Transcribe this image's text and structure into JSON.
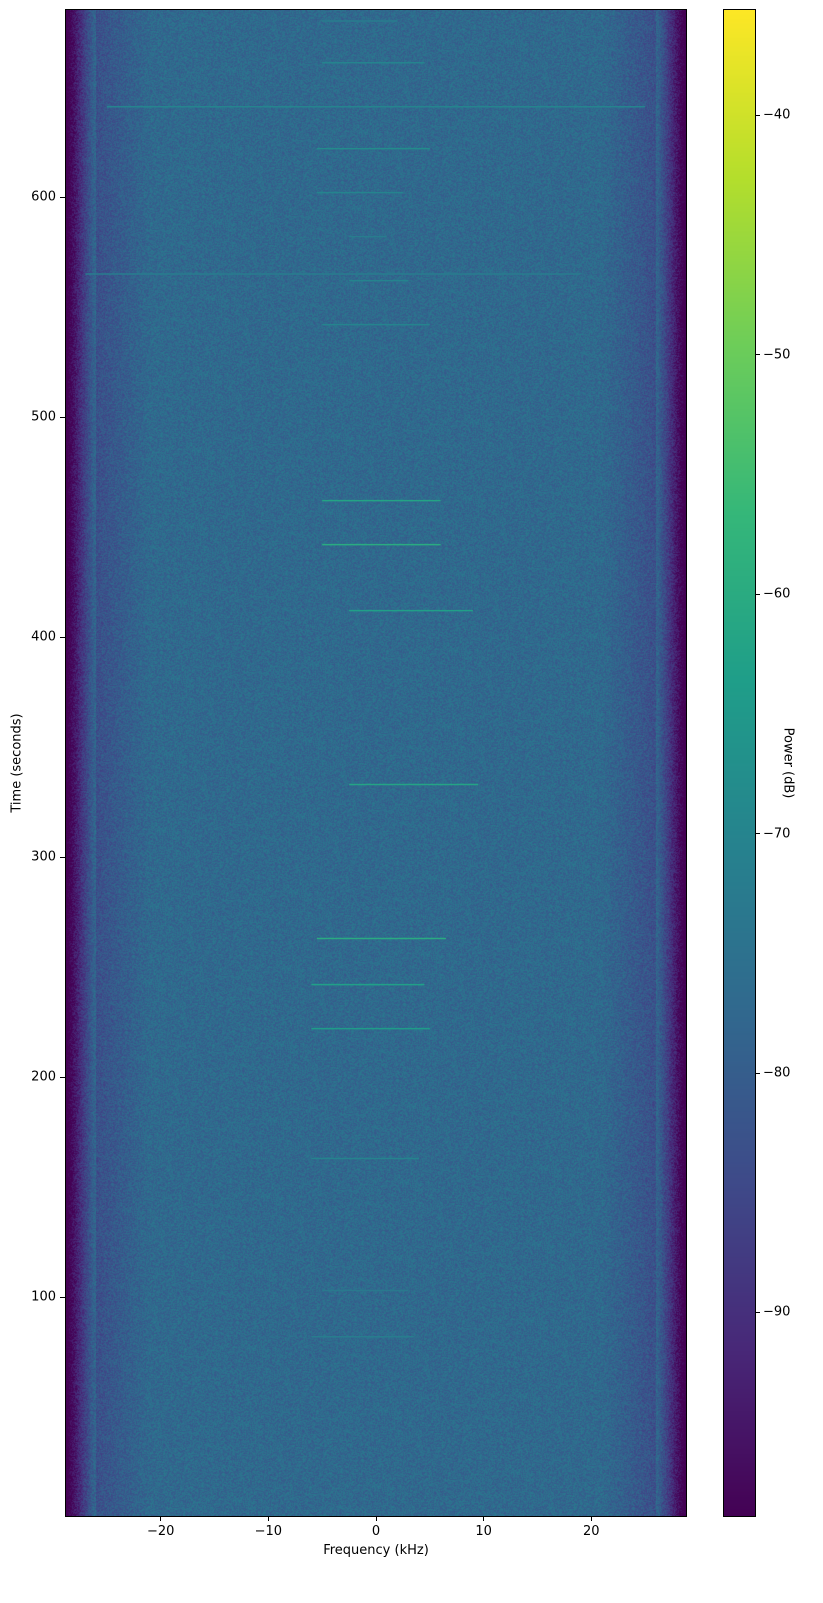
{
  "chart_data": {
    "type": "heatmap",
    "xlabel": "Frequency (kHz)",
    "ylabel": "Time (seconds)",
    "xlim": [
      -28.8,
      28.8
    ],
    "ylim": [
      0.5,
      685
    ],
    "xticks": [
      -20,
      -10,
      0,
      10,
      20
    ],
    "xtick_labels": [
      "−20",
      "−10",
      "0",
      "10",
      "20"
    ],
    "yticks": [
      100,
      200,
      300,
      400,
      500,
      600
    ],
    "ytick_labels": [
      "100",
      "200",
      "300",
      "400",
      "500",
      "600"
    ],
    "colorbar": {
      "label": "Power (dB)",
      "clim": [
        -98.5,
        -35.6
      ],
      "colormap": "viridis",
      "ticks": [
        -90,
        -80,
        -70,
        -60,
        -50,
        -40
      ],
      "tick_labels": [
        "−90",
        "−80",
        "−70",
        "−60",
        "−50",
        "−40"
      ]
    },
    "background_level_db": -77,
    "band_edge_khz": [
      -26,
      26
    ],
    "bursts": [
      {
        "time": 82,
        "f_start": -6,
        "f_end": 3.5,
        "power_db": -72
      },
      {
        "time": 103,
        "f_start": -5,
        "f_end": 3,
        "power_db": -73
      },
      {
        "time": 163,
        "f_start": -6,
        "f_end": 4,
        "power_db": -70
      },
      {
        "time": 222,
        "f_start": -6,
        "f_end": 5,
        "power_db": -64
      },
      {
        "time": 242,
        "f_start": -6,
        "f_end": 4.5,
        "power_db": -63
      },
      {
        "time": 263,
        "f_start": -5.5,
        "f_end": 6.5,
        "power_db": -60
      },
      {
        "time": 333,
        "f_start": -2.5,
        "f_end": 9.5,
        "power_db": -62
      },
      {
        "time": 412,
        "f_start": -2.5,
        "f_end": 9,
        "power_db": -63
      },
      {
        "time": 442,
        "f_start": -5,
        "f_end": 6,
        "power_db": -60
      },
      {
        "time": 462,
        "f_start": -5,
        "f_end": 6,
        "power_db": -62
      },
      {
        "time": 542,
        "f_start": -5,
        "f_end": 5,
        "power_db": -70
      },
      {
        "time": 562,
        "f_start": -2.5,
        "f_end": 3,
        "power_db": -70
      },
      {
        "time": 565,
        "f_start": -27,
        "f_end": 19,
        "power_db": -72
      },
      {
        "time": 582,
        "f_start": -2.5,
        "f_end": 1,
        "power_db": -72
      },
      {
        "time": 602,
        "f_start": -5.5,
        "f_end": 2.5,
        "power_db": -70
      },
      {
        "time": 622,
        "f_start": -5.5,
        "f_end": 5,
        "power_db": -68
      },
      {
        "time": 641,
        "f_start": -25,
        "f_end": 25,
        "power_db": -70
      },
      {
        "time": 661,
        "f_start": -5,
        "f_end": 4.5,
        "power_db": -70
      },
      {
        "time": 680,
        "f_start": -5,
        "f_end": 2,
        "power_db": -72
      }
    ]
  }
}
